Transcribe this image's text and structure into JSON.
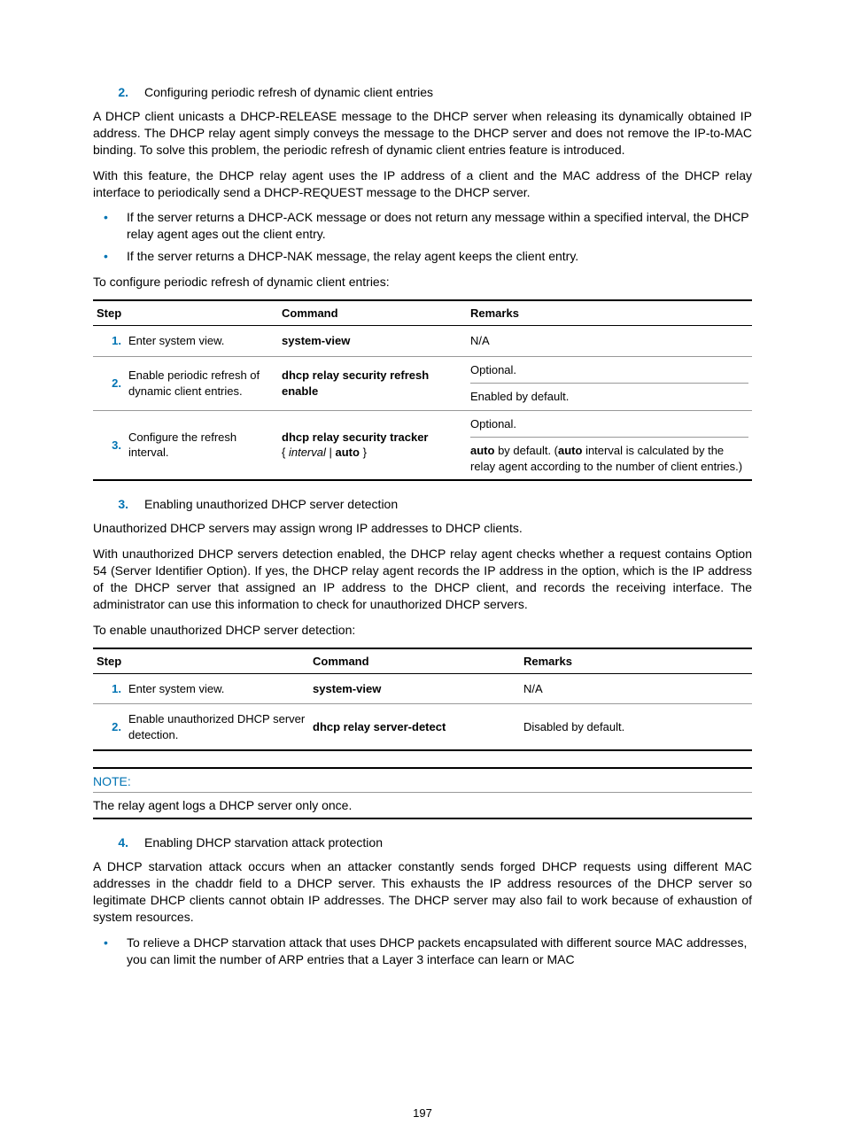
{
  "accent_color": "#0073b3",
  "page_number": "197",
  "section2": {
    "num": "2.",
    "title": "Configuring periodic refresh of dynamic client entries",
    "para1": "A DHCP client unicasts a DHCP-RELEASE message to the DHCP server when releasing its dynamically obtained IP address. The DHCP relay agent simply conveys the message to the DHCP server and does not remove the IP-to-MAC binding. To solve this problem, the periodic refresh of dynamic client entries feature is introduced.",
    "para2": "With this feature, the DHCP relay agent uses the IP address of a client and the MAC address of the DHCP relay interface to periodically send a DHCP-REQUEST message to the DHCP server.",
    "bullet1": "If the server returns a DHCP-ACK message or does not return any message within a specified interval, the DHCP relay agent ages out the client entry.",
    "bullet2": "If the server returns a DHCP-NAK message, the relay agent keeps the client entry.",
    "lead": "To configure periodic refresh of dynamic client entries:"
  },
  "table1": {
    "headers": {
      "step": "Step",
      "command": "Command",
      "remarks": "Remarks"
    },
    "r1": {
      "num": "1.",
      "step": "Enter system view.",
      "cmd": "system-view",
      "remarks": "N/A"
    },
    "r2": {
      "num": "2.",
      "step": "Enable periodic refresh of dynamic client entries.",
      "cmd": "dhcp relay security refresh enable",
      "rm1": "Optional.",
      "rm2": "Enabled by default."
    },
    "r3": {
      "num": "3.",
      "step": "Configure the refresh interval.",
      "cmd_bold1": "dhcp relay security tracker",
      "cmd_brace_open": "{ ",
      "cmd_italic": "interval",
      "cmd_pipe": " | ",
      "cmd_bold2": "auto",
      "cmd_brace_close": " }",
      "rm1": "Optional.",
      "rm2a": "auto",
      "rm2b": " by default. (",
      "rm2c": "auto",
      "rm2d": " interval is calculated by the relay agent according to the number of client entries.)"
    }
  },
  "section3": {
    "num": "3.",
    "title": "Enabling unauthorized DHCP server detection",
    "para1": "Unauthorized DHCP servers may assign wrong IP addresses to DHCP clients.",
    "para2": "With unauthorized DHCP servers detection enabled, the DHCP relay agent checks whether a request contains Option 54 (Server Identifier Option). If yes, the DHCP relay agent records the IP address in the option, which is the IP address of the DHCP server that assigned an IP address to the DHCP client, and records the receiving interface. The administrator can use this information to check for unauthorized DHCP servers.",
    "lead": "To enable unauthorized DHCP server detection:"
  },
  "table2": {
    "headers": {
      "step": "Step",
      "command": "Command",
      "remarks": "Remarks"
    },
    "r1": {
      "num": "1.",
      "step": "Enter system view.",
      "cmd": "system-view",
      "remarks": "N/A"
    },
    "r2": {
      "num": "2.",
      "step": "Enable unauthorized DHCP server detection.",
      "cmd": "dhcp relay server-detect",
      "remarks": "Disabled by default."
    }
  },
  "note": {
    "title": "NOTE:",
    "body": "The relay agent logs a DHCP server only once."
  },
  "section4": {
    "num": "4.",
    "title": "Enabling DHCP starvation attack protection",
    "para1": "A DHCP starvation attack occurs when an attacker constantly sends forged DHCP requests using different MAC addresses in the chaddr field to a DHCP server. This exhausts the IP address resources of the DHCP server so legitimate DHCP clients cannot obtain IP addresses. The DHCP server may also fail to work because of exhaustion of system resources.",
    "bullet1": "To relieve a DHCP starvation attack that uses DHCP packets encapsulated with different source MAC addresses, you can limit the number of ARP entries that a Layer 3 interface can learn or MAC"
  }
}
